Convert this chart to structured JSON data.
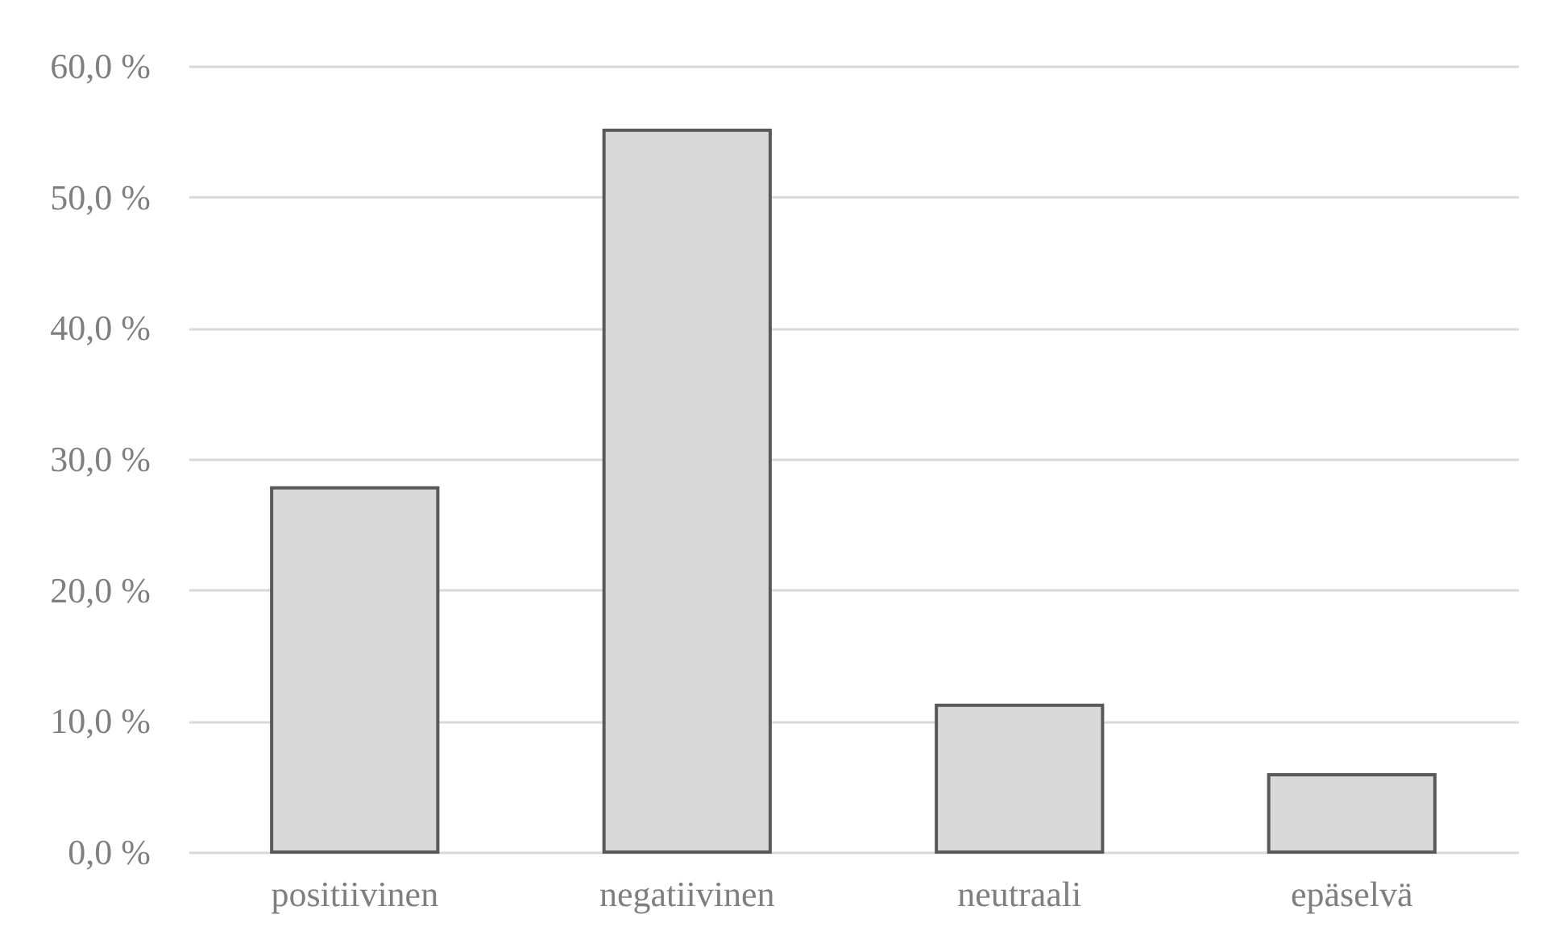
{
  "chart_data": {
    "type": "bar",
    "categories": [
      "positiivinen",
      "negatiivinen",
      "neutraali",
      "epäselvä"
    ],
    "values": [
      27.8,
      55.1,
      11.2,
      5.9
    ],
    "color": "#d9d9d9",
    "ylim": [
      0,
      60
    ],
    "yticks": [
      {
        "value": 0,
        "label": "0,0 %"
      },
      {
        "value": 10,
        "label": "10,0 %"
      },
      {
        "value": 20,
        "label": "20,0 %"
      },
      {
        "value": 30,
        "label": "30,0 %"
      },
      {
        "value": 40,
        "label": "40,0 %"
      },
      {
        "value": 50,
        "label": "50,0 %"
      },
      {
        "value": 60,
        "label": "60,0 %"
      }
    ],
    "grid": "y"
  }
}
